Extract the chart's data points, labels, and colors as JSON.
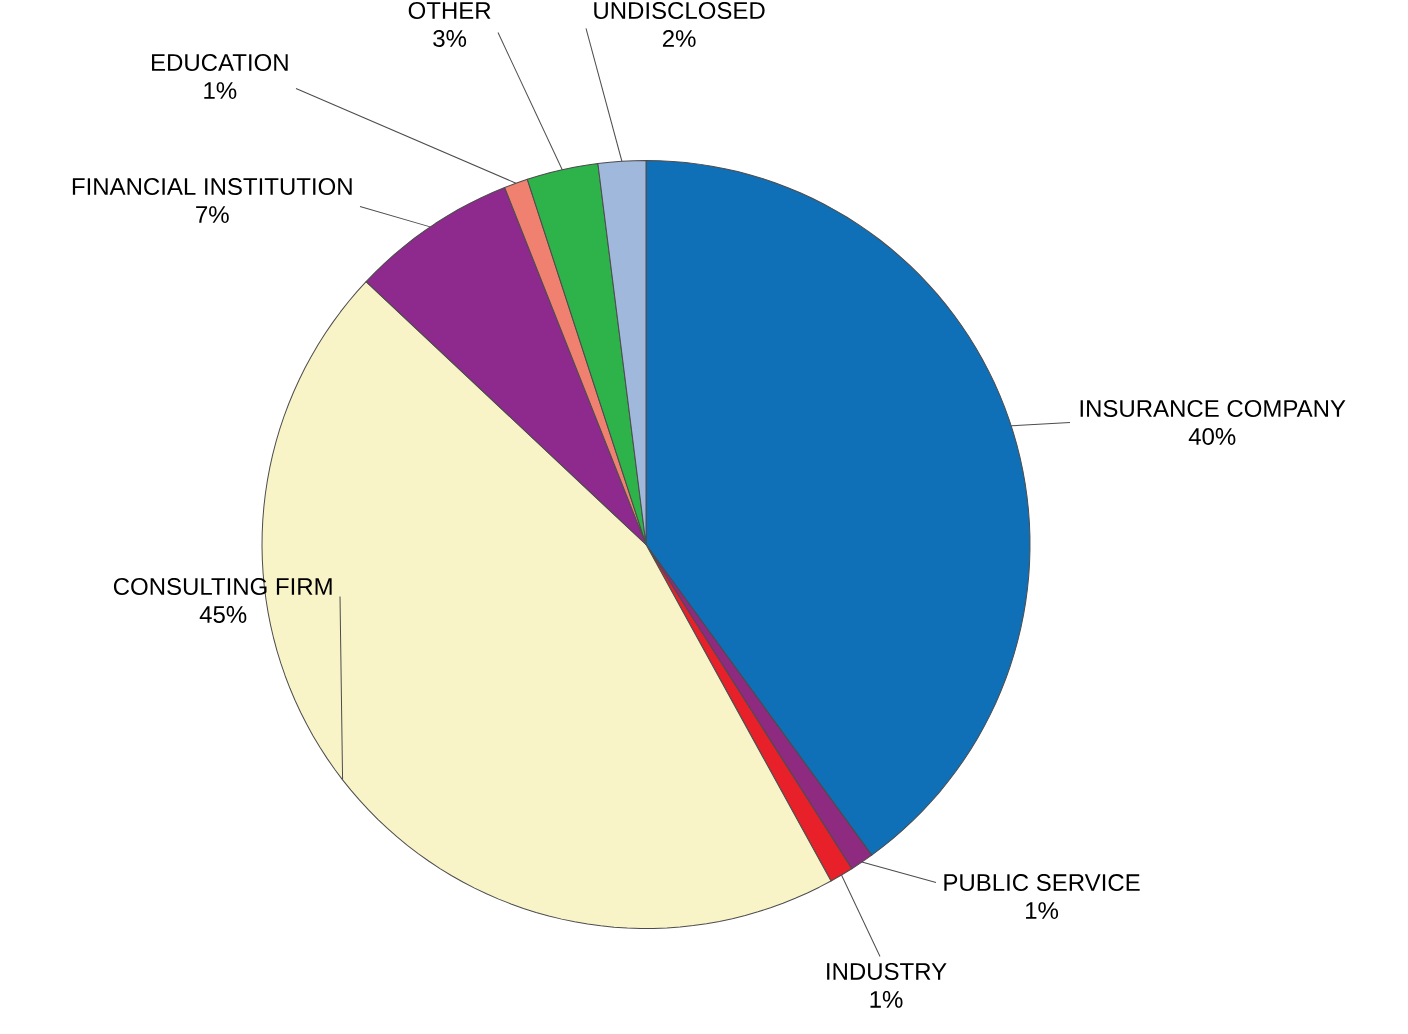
{
  "chart_data": {
    "type": "pie",
    "categories": [
      "INSURANCE COMPANY",
      "PUBLIC SERVICE",
      "INDUSTRY",
      "CONSULTING FIRM",
      "FINANCIAL INSTITUTION",
      "EDUCATION",
      "OTHER",
      "UNDISCLOSED"
    ],
    "values": [
      40,
      1,
      1,
      45,
      7,
      1,
      3,
      2
    ],
    "value_labels": [
      "40%",
      "1%",
      "1%",
      "45%",
      "7%",
      "1%",
      "3%",
      "2%"
    ],
    "colors": [
      "#0f70b8",
      "#8e2a80",
      "#e8202a",
      "#f8f4c8",
      "#8e2a8e",
      "#f08070",
      "#2db34a",
      "#a0b8dc"
    ]
  }
}
